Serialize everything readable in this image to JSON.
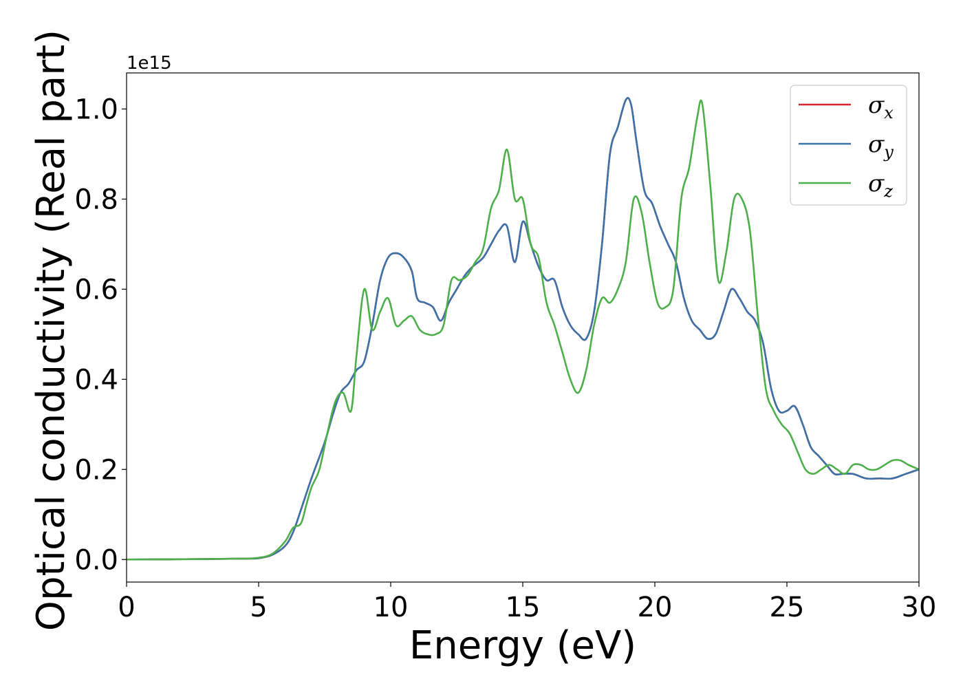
{
  "chart_data": {
    "type": "line",
    "xlabel": "Energy (eV)",
    "ylabel": "Optical conductivity (Real part)",
    "y_offset_label": "1e15",
    "xlim": [
      0,
      30
    ],
    "ylim": [
      -0.05,
      1.08
    ],
    "xticks": [
      "0",
      "5",
      "10",
      "15",
      "20",
      "25",
      "30"
    ],
    "xtick_values": [
      0,
      5,
      10,
      15,
      20,
      25,
      30
    ],
    "yticks": [
      "0.0",
      "0.2",
      "0.4",
      "0.6",
      "0.8",
      "1.0"
    ],
    "ytick_values": [
      0,
      0.2,
      0.4,
      0.6,
      0.8,
      1.0
    ],
    "grid": false,
    "legend_position": "top-right",
    "series": [
      {
        "name": "σx",
        "legend_base": "σ",
        "legend_sub": "x",
        "color": "#d62728",
        "x": [
          0,
          3,
          4.5,
          5,
          5.5,
          6,
          6.3,
          6.6,
          7,
          7.5,
          7.8,
          8.1,
          8.4,
          8.7,
          9,
          9.3,
          9.6,
          9.9,
          10.2,
          10.5,
          10.8,
          11,
          11.3,
          11.6,
          11.9,
          12.2,
          12.5,
          12.8,
          13.1,
          13.5,
          13.8,
          14.1,
          14.4,
          14.7,
          15,
          15.3,
          15.6,
          15.9,
          16.2,
          16.5,
          16.8,
          17.1,
          17.4,
          17.7,
          18,
          18.3,
          18.6,
          18.9,
          19.1,
          19.3,
          19.6,
          19.9,
          20.2,
          20.5,
          20.8,
          21.1,
          21.4,
          21.7,
          22,
          22.3,
          22.6,
          22.9,
          23.2,
          23.5,
          23.8,
          24.1,
          24.4,
          24.7,
          25,
          25.3,
          25.6,
          25.9,
          26.2,
          26.5,
          26.8,
          27.1,
          27.5,
          28,
          28.5,
          29,
          29.5,
          30
        ],
        "y": [
          0,
          0.001,
          0.002,
          0.003,
          0.01,
          0.03,
          0.06,
          0.11,
          0.18,
          0.26,
          0.32,
          0.37,
          0.39,
          0.42,
          0.44,
          0.52,
          0.62,
          0.67,
          0.68,
          0.67,
          0.64,
          0.58,
          0.57,
          0.56,
          0.53,
          0.57,
          0.6,
          0.63,
          0.65,
          0.67,
          0.7,
          0.73,
          0.74,
          0.66,
          0.75,
          0.7,
          0.65,
          0.62,
          0.62,
          0.56,
          0.52,
          0.5,
          0.49,
          0.55,
          0.7,
          0.9,
          0.96,
          1.02,
          1.01,
          0.93,
          0.82,
          0.79,
          0.74,
          0.7,
          0.66,
          0.58,
          0.53,
          0.51,
          0.49,
          0.5,
          0.55,
          0.6,
          0.58,
          0.55,
          0.53,
          0.48,
          0.38,
          0.33,
          0.33,
          0.34,
          0.3,
          0.25,
          0.23,
          0.21,
          0.19,
          0.19,
          0.19,
          0.18,
          0.18,
          0.18,
          0.19,
          0.2
        ]
      },
      {
        "name": "σy",
        "legend_base": "σ",
        "legend_sub": "y",
        "color": "#3b72aa",
        "x": [
          0,
          3,
          4.5,
          5,
          5.5,
          6,
          6.3,
          6.6,
          7,
          7.5,
          7.8,
          8.1,
          8.4,
          8.7,
          9,
          9.3,
          9.6,
          9.9,
          10.2,
          10.5,
          10.8,
          11,
          11.3,
          11.6,
          11.9,
          12.2,
          12.5,
          12.8,
          13.1,
          13.5,
          13.8,
          14.1,
          14.4,
          14.7,
          15,
          15.3,
          15.6,
          15.9,
          16.2,
          16.5,
          16.8,
          17.1,
          17.4,
          17.7,
          18,
          18.3,
          18.6,
          18.9,
          19.1,
          19.3,
          19.6,
          19.9,
          20.2,
          20.5,
          20.8,
          21.1,
          21.4,
          21.7,
          22,
          22.3,
          22.6,
          22.9,
          23.2,
          23.5,
          23.8,
          24.1,
          24.4,
          24.7,
          25,
          25.3,
          25.6,
          25.9,
          26.2,
          26.5,
          26.8,
          27.1,
          27.5,
          28,
          28.5,
          29,
          29.5,
          30
        ],
        "y": [
          0,
          0.001,
          0.002,
          0.003,
          0.01,
          0.03,
          0.06,
          0.11,
          0.18,
          0.26,
          0.32,
          0.37,
          0.39,
          0.42,
          0.44,
          0.52,
          0.62,
          0.67,
          0.68,
          0.67,
          0.64,
          0.58,
          0.57,
          0.56,
          0.53,
          0.57,
          0.6,
          0.63,
          0.65,
          0.67,
          0.7,
          0.73,
          0.74,
          0.66,
          0.75,
          0.7,
          0.65,
          0.62,
          0.62,
          0.56,
          0.52,
          0.5,
          0.49,
          0.55,
          0.7,
          0.9,
          0.96,
          1.02,
          1.01,
          0.93,
          0.82,
          0.79,
          0.74,
          0.7,
          0.66,
          0.58,
          0.53,
          0.51,
          0.49,
          0.5,
          0.55,
          0.6,
          0.58,
          0.55,
          0.53,
          0.48,
          0.38,
          0.33,
          0.33,
          0.34,
          0.3,
          0.25,
          0.23,
          0.21,
          0.19,
          0.19,
          0.19,
          0.18,
          0.18,
          0.18,
          0.19,
          0.2
        ]
      },
      {
        "name": "σz",
        "legend_base": "σ",
        "legend_sub": "z",
        "color": "#4daf4a",
        "x": [
          0,
          3,
          4.5,
          5,
          5.5,
          6,
          6.3,
          6.6,
          6.8,
          7,
          7.3,
          7.6,
          7.9,
          8.2,
          8.5,
          8.7,
          9,
          9.3,
          9.6,
          9.9,
          10.2,
          10.5,
          10.8,
          11.1,
          11.4,
          11.7,
          12,
          12.3,
          12.6,
          12.9,
          13.2,
          13.5,
          13.8,
          14.1,
          14.4,
          14.7,
          15,
          15.3,
          15.6,
          15.9,
          16.2,
          16.5,
          16.8,
          17.1,
          17.4,
          17.7,
          18,
          18.3,
          18.6,
          18.9,
          19.2,
          19.5,
          19.8,
          20.1,
          20.4,
          20.7,
          21,
          21.3,
          21.6,
          21.8,
          22.1,
          22.4,
          22.7,
          23,
          23.3,
          23.6,
          23.9,
          24.2,
          24.5,
          24.8,
          25.1,
          25.4,
          25.7,
          26,
          26.3,
          26.6,
          26.9,
          27.2,
          27.5,
          27.8,
          28.1,
          28.4,
          28.7,
          29,
          29.3,
          29.6,
          30
        ],
        "y": [
          0,
          0.001,
          0.002,
          0.004,
          0.012,
          0.04,
          0.07,
          0.08,
          0.12,
          0.16,
          0.2,
          0.28,
          0.35,
          0.37,
          0.33,
          0.45,
          0.6,
          0.51,
          0.55,
          0.58,
          0.52,
          0.53,
          0.54,
          0.51,
          0.5,
          0.5,
          0.52,
          0.62,
          0.62,
          0.63,
          0.66,
          0.69,
          0.78,
          0.82,
          0.91,
          0.8,
          0.8,
          0.7,
          0.67,
          0.57,
          0.52,
          0.46,
          0.4,
          0.37,
          0.42,
          0.52,
          0.58,
          0.57,
          0.6,
          0.66,
          0.8,
          0.77,
          0.66,
          0.57,
          0.56,
          0.6,
          0.8,
          0.87,
          0.98,
          1.01,
          0.83,
          0.62,
          0.68,
          0.8,
          0.8,
          0.73,
          0.54,
          0.38,
          0.33,
          0.3,
          0.28,
          0.24,
          0.2,
          0.19,
          0.2,
          0.21,
          0.2,
          0.19,
          0.21,
          0.21,
          0.2,
          0.2,
          0.21,
          0.22,
          0.22,
          0.21,
          0.2
        ]
      }
    ]
  }
}
